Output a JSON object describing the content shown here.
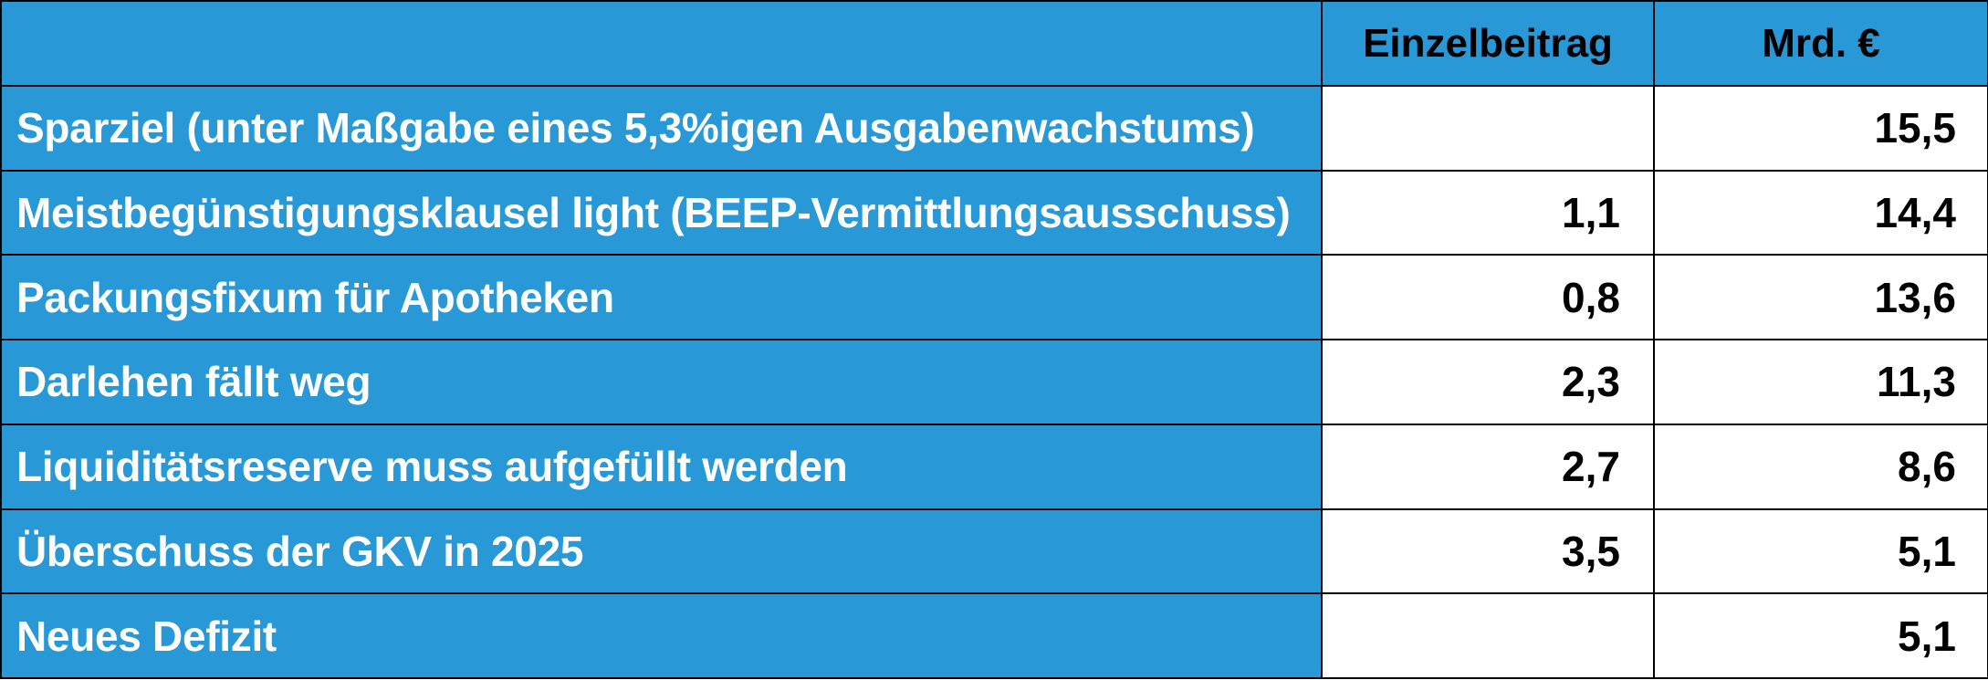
{
  "colors": {
    "header_bg": "#2898d6",
    "label_bg": "#2898d6",
    "label_text": "#ffffff",
    "value_bg": "#ffffff",
    "value_text": "#000000",
    "border": "#000000"
  },
  "table": {
    "headers": [
      "",
      "Einzelbeitrag",
      "Mrd. €"
    ],
    "rows": [
      {
        "label": "Sparziel (unter Maßgabe eines 5,3%igen Ausgabenwachstums)",
        "einzelbeitrag": "",
        "mrd": "15,5"
      },
      {
        "label": "Meistbegünstigungsklausel light (BEEP-Vermittlungsausschuss)",
        "einzelbeitrag": "1,1",
        "mrd": "14,4"
      },
      {
        "label": "Packungsfixum für Apotheken",
        "einzelbeitrag": "0,8",
        "mrd": "13,6"
      },
      {
        "label": "Darlehen fällt weg",
        "einzelbeitrag": "2,3",
        "mrd": "11,3"
      },
      {
        "label": "Liquiditätsreserve muss aufgefüllt werden",
        "einzelbeitrag": "2,7",
        "mrd": "8,6"
      },
      {
        "label": "Überschuss der GKV in 2025",
        "einzelbeitrag": "3,5",
        "mrd": "5,1"
      },
      {
        "label": "Neues Defizit",
        "einzelbeitrag": "",
        "mrd": "5,1"
      }
    ]
  }
}
